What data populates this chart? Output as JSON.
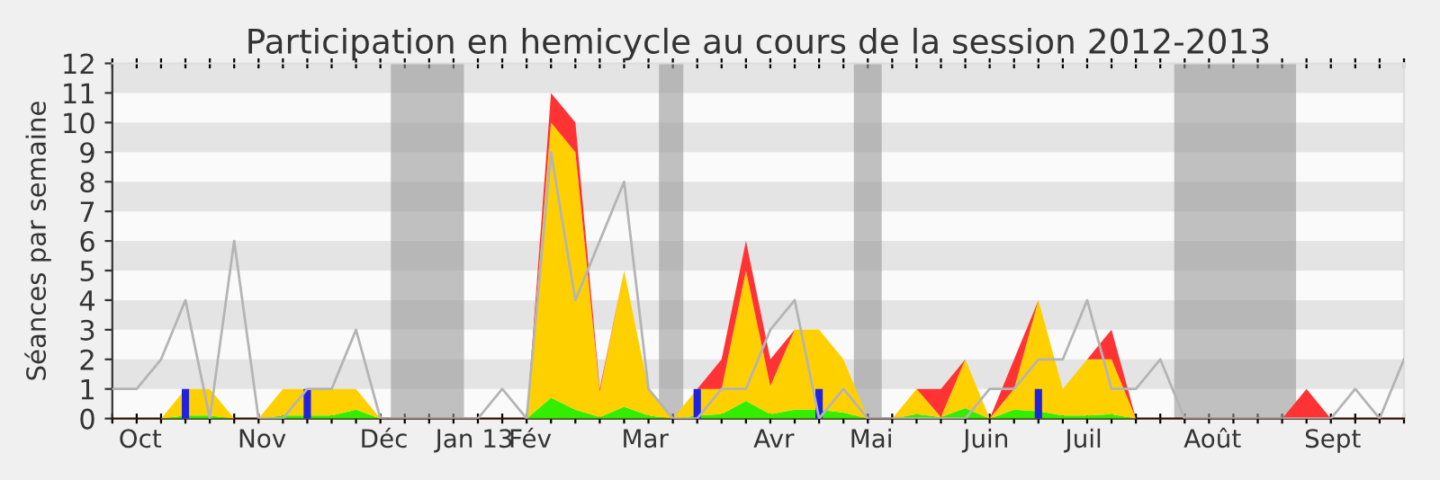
{
  "chart_data": {
    "type": "area",
    "stacked": true,
    "title": "Participation en hemicycle au cours de la session 2012-2013",
    "ylabel": "Séances par semaine",
    "x": [
      "2012-10-08",
      "2012-10-15",
      "2012-10-22",
      "2012-10-29",
      "2012-11-05",
      "2012-11-12",
      "2012-11-19",
      "2012-11-26",
      "2012-12-03",
      "2012-12-10",
      "2012-12-17",
      "2012-12-24",
      "2012-12-31",
      "2013-01-07",
      "2013-01-14",
      "2013-01-21",
      "2013-01-28",
      "2013-02-04",
      "2013-02-11",
      "2013-02-18",
      "2013-02-25",
      "2013-03-04",
      "2013-03-11",
      "2013-03-18",
      "2013-03-25",
      "2013-04-01",
      "2013-04-08",
      "2013-04-15",
      "2013-04-22",
      "2013-04-29",
      "2013-05-06",
      "2013-05-13",
      "2013-05-20",
      "2013-05-27",
      "2013-06-03",
      "2013-06-10",
      "2013-06-17",
      "2013-06-24",
      "2013-07-01",
      "2013-07-08",
      "2013-07-15",
      "2013-07-22",
      "2013-07-29",
      "2013-08-05",
      "2013-08-12",
      "2013-08-19",
      "2013-08-26",
      "2013-09-02",
      "2013-09-09",
      "2013-09-16",
      "2013-09-23",
      "2013-09-30",
      "2013-10-07",
      "2013-10-14"
    ],
    "series": [
      {
        "color": "#33ee00",
        "values": [
          0,
          0,
          0,
          0.1,
          0.1,
          0,
          0,
          0.1,
          0.1,
          0.1,
          0.3,
          0,
          0,
          0,
          0,
          0,
          0,
          0,
          0.7,
          0.3,
          0.05,
          0.4,
          0.1,
          0,
          0.1,
          0.15,
          0.6,
          0.15,
          0.3,
          0.3,
          0.2,
          0,
          0,
          0.15,
          0.05,
          0.35,
          0,
          0.3,
          0.25,
          0.1,
          0.1,
          0.15,
          0,
          0,
          0,
          0,
          0,
          0,
          0,
          0,
          0,
          0,
          0,
          0
        ]
      },
      {
        "color": "#ffd000",
        "values": [
          0,
          0,
          0,
          0.9,
          0.9,
          0,
          0,
          0.9,
          0.9,
          0.9,
          0.7,
          0,
          0,
          0,
          0,
          0,
          0,
          0,
          9.3,
          8.7,
          0.85,
          4.6,
          0.9,
          0,
          0.9,
          0.85,
          4.4,
          0.95,
          2.7,
          2.7,
          1.8,
          0,
          0,
          0.85,
          0,
          1.65,
          0,
          0.7,
          3.75,
          0.9,
          1.9,
          1.85,
          0,
          0,
          0,
          0,
          0,
          0,
          0,
          0,
          0,
          0,
          0,
          0
        ]
      },
      {
        "color": "#ff3333",
        "values": [
          0,
          0,
          0,
          0,
          0,
          0,
          0,
          0,
          0,
          0,
          0,
          0,
          0,
          0,
          0,
          0,
          0,
          0,
          1,
          1,
          0.1,
          0,
          0,
          0,
          0,
          1,
          1,
          0.9,
          0,
          0,
          0,
          0,
          0,
          0,
          0.95,
          0,
          0,
          1,
          0,
          0,
          0,
          1,
          0,
          0,
          0,
          0,
          0,
          0,
          0,
          1,
          0,
          0,
          0,
          0
        ]
      },
      {
        "type": "bar",
        "color": "#2222dd",
        "values": [
          null,
          null,
          null,
          1,
          null,
          null,
          null,
          null,
          1,
          null,
          null,
          null,
          null,
          null,
          null,
          null,
          null,
          null,
          null,
          null,
          null,
          null,
          null,
          null,
          1,
          null,
          null,
          null,
          null,
          1,
          null,
          null,
          null,
          null,
          null,
          null,
          null,
          null,
          1,
          null,
          null,
          null,
          null,
          null,
          null,
          null,
          null,
          null,
          null,
          null,
          null,
          null,
          null,
          null
        ]
      },
      {
        "type": "line",
        "color": "#b4b4b4",
        "values": [
          1,
          1,
          2,
          4,
          0,
          6,
          0,
          0,
          1,
          1,
          3,
          0,
          0,
          0,
          0,
          0,
          1,
          0,
          9,
          4,
          6,
          8,
          1,
          0,
          0,
          1,
          1,
          3,
          4,
          0,
          1,
          0,
          0,
          0,
          0,
          0,
          1,
          1,
          2,
          2,
          4,
          1,
          1,
          2,
          0,
          0,
          0,
          0,
          0,
          0,
          0,
          1,
          0,
          2
        ]
      }
    ],
    "bands": [
      {
        "axis": "x",
        "from": "2012-12-27",
        "to": "2013-01-17",
        "color": "#999999"
      },
      {
        "axis": "x",
        "from": "2013-03-14",
        "to": "2013-03-21",
        "color": "#999999"
      },
      {
        "axis": "x",
        "from": "2013-05-09",
        "to": "2013-05-17",
        "color": "#999999"
      },
      {
        "axis": "x",
        "from": "2013-08-09",
        "to": "2013-09-13",
        "color": "#999999"
      }
    ],
    "xlim": [
      "2012-10-08",
      "2013-10-14"
    ],
    "xticks": [
      {
        "value": "2012-10-08",
        "label": null
      },
      {
        "value": "2012-10-15",
        "label": null
      },
      {
        "value": "2012-10-22",
        "label": null
      },
      {
        "value": "2012-10-29",
        "label": null
      },
      {
        "value": "2012-11-05",
        "label": null
      },
      {
        "value": "2012-11-12",
        "label": null
      },
      {
        "value": "2012-11-19",
        "label": null
      },
      {
        "value": "2012-11-26",
        "label": null
      },
      {
        "value": "2012-12-03",
        "label": null
      },
      {
        "value": "2012-12-10",
        "label": null
      },
      {
        "value": "2012-12-17",
        "label": null
      },
      {
        "value": "2012-12-24",
        "label": null
      },
      {
        "value": "2012-12-31",
        "label": null
      },
      {
        "value": "2013-01-07",
        "label": null
      },
      {
        "value": "2013-01-14",
        "label": null
      },
      {
        "value": "2013-01-21",
        "label": null
      },
      {
        "value": "2013-01-28",
        "label": null
      },
      {
        "value": "2013-02-04",
        "label": null
      },
      {
        "value": "2013-02-11",
        "label": null
      },
      {
        "value": "2013-02-18",
        "label": null
      },
      {
        "value": "2013-02-25",
        "label": null
      },
      {
        "value": "2013-03-04",
        "label": null
      },
      {
        "value": "2013-03-11",
        "label": null
      },
      {
        "value": "2013-03-18",
        "label": null
      },
      {
        "value": "2013-03-25",
        "label": null
      },
      {
        "value": "2013-04-01",
        "label": null
      },
      {
        "value": "2013-04-08",
        "label": null
      },
      {
        "value": "2013-04-15",
        "label": null
      },
      {
        "value": "2013-04-22",
        "label": null
      },
      {
        "value": "2013-04-29",
        "label": null
      },
      {
        "value": "2013-05-06",
        "label": null
      },
      {
        "value": "2013-05-13",
        "label": null
      },
      {
        "value": "2013-05-20",
        "label": null
      },
      {
        "value": "2013-05-27",
        "label": null
      },
      {
        "value": "2013-06-03",
        "label": null
      },
      {
        "value": "2013-06-10",
        "label": null
      },
      {
        "value": "2013-06-17",
        "label": null
      },
      {
        "value": "2013-06-24",
        "label": null
      },
      {
        "value": "2013-07-01",
        "label": null
      },
      {
        "value": "2013-07-08",
        "label": null
      },
      {
        "value": "2013-07-15",
        "label": null
      },
      {
        "value": "2013-07-22",
        "label": null
      },
      {
        "value": "2013-07-29",
        "label": null
      },
      {
        "value": "2013-08-05",
        "label": null
      },
      {
        "value": "2013-08-12",
        "label": null
      },
      {
        "value": "2013-08-19",
        "label": null
      },
      {
        "value": "2013-08-26",
        "label": null
      },
      {
        "value": "2013-09-02",
        "label": null
      },
      {
        "value": "2013-09-09",
        "label": null
      },
      {
        "value": "2013-09-16",
        "label": null
      },
      {
        "value": "2013-09-23",
        "label": null
      },
      {
        "value": "2013-09-30",
        "label": null
      },
      {
        "value": "2013-10-07",
        "label": null
      },
      {
        "value": "2013-10-14",
        "label": null
      },
      {
        "value": "2012-10-16",
        "label": "Oct"
      },
      {
        "value": "2012-11-20",
        "label": "Nov"
      },
      {
        "value": "2012-12-25",
        "label": "Déc"
      },
      {
        "value": "2013-01-20",
        "label": "Jan 13"
      },
      {
        "value": "2013-02-05",
        "label": "Fév"
      },
      {
        "value": "2013-03-10",
        "label": "Mar"
      },
      {
        "value": "2013-04-16",
        "label": "Avr"
      },
      {
        "value": "2013-05-14",
        "label": "Mai"
      },
      {
        "value": "2013-06-16",
        "label": "Juin"
      },
      {
        "value": "2013-07-14",
        "label": "Juil"
      },
      {
        "value": "2013-08-20",
        "label": "Août"
      },
      {
        "value": "2013-09-23T12:00",
        "label": "Sept"
      }
    ],
    "ylim": [
      0,
      12
    ],
    "yticks": [
      0,
      1,
      2,
      3,
      4,
      5,
      6,
      7,
      8,
      9,
      10,
      11,
      12
    ],
    "legend": false
  }
}
